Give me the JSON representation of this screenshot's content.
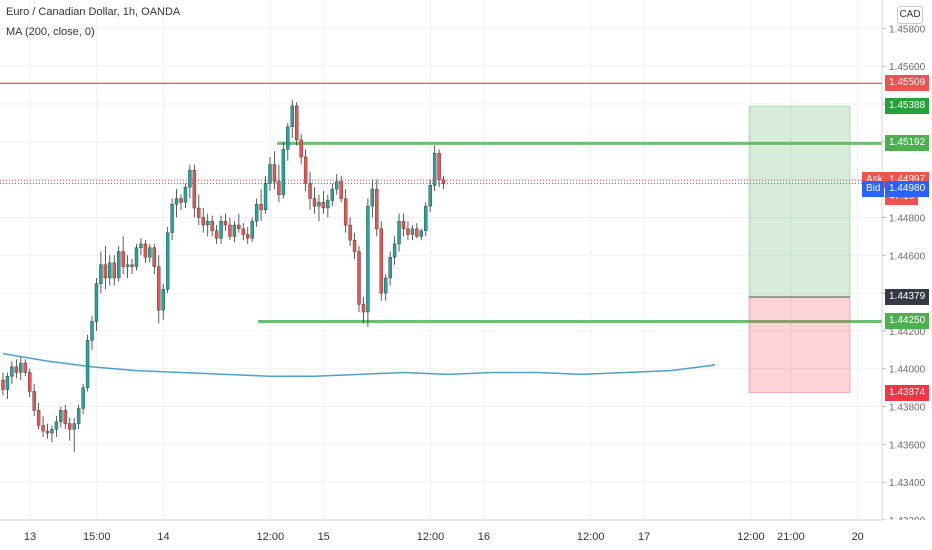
{
  "header": {
    "title": "Euro / Canadian Dollar, 1h, OANDA",
    "indicator": "MA (200, close, 0)",
    "currency": "CAD"
  },
  "price_tags": {
    "resistance": {
      "value": "1.45509",
      "color": "#ef5350"
    },
    "target": {
      "value": "1.45388",
      "color": "#21a33a"
    },
    "range_top": {
      "value": "1.45192",
      "color": "#4caf50"
    },
    "ask": {
      "label": "Ask",
      "value": "1.44997",
      "color": "#ef5350"
    },
    "countdown": {
      "value": "47:10",
      "color": "#ef5350"
    },
    "bid": {
      "label": "Bid",
      "value": "1.44980",
      "color": "#2962ff"
    },
    "entry": {
      "value": "1.44379",
      "color": "#363a45"
    },
    "range_bottom": {
      "value": "1.44250",
      "color": "#4caf50"
    },
    "stop": {
      "value": "1.43874",
      "color": "#f23645"
    }
  },
  "colors": {
    "up": "#26a69a",
    "down": "#ef5350",
    "ma": "#4aa3c7",
    "grid": "#eef0f3"
  },
  "chart_data": {
    "type": "candlestick",
    "ylim": [
      1.432,
      1.4595
    ],
    "y_ticks": [
      "1.45800",
      "1.45600",
      "1.45400",
      "1.45200",
      "1.45000",
      "1.44800",
      "1.44600",
      "1.44400",
      "1.44200",
      "1.44000",
      "1.43800",
      "1.43600",
      "1.43400",
      "1.43200"
    ],
    "x_ticks": [
      {
        "label": "13",
        "x": 0
      },
      {
        "label": "15:00",
        "x": 15
      },
      {
        "label": "14",
        "x": 30
      },
      {
        "label": "12:00",
        "x": 54
      },
      {
        "label": "15",
        "x": 66
      },
      {
        "label": "12:00",
        "x": 90
      },
      {
        "label": "16",
        "x": 102
      },
      {
        "label": "12:00",
        "x": 126
      },
      {
        "label": "17",
        "x": 138
      },
      {
        "label": "12:00",
        "x": 162
      },
      {
        "label": "21:00",
        "x": 171
      },
      {
        "label": "20",
        "x": 186
      }
    ],
    "candles": [
      [
        1.4394,
        1.4398,
        1.4386,
        1.4389
      ],
      [
        1.4389,
        1.4398,
        1.4384,
        1.4396
      ],
      [
        1.4396,
        1.4404,
        1.4392,
        1.4401
      ],
      [
        1.4401,
        1.4405,
        1.4395,
        1.4398
      ],
      [
        1.4398,
        1.4406,
        1.4394,
        1.4403
      ],
      [
        1.4403,
        1.4405,
        1.4396,
        1.4398
      ],
      [
        1.4398,
        1.44,
        1.4385,
        1.4388
      ],
      [
        1.4388,
        1.4392,
        1.4375,
        1.4378
      ],
      [
        1.4378,
        1.4382,
        1.4368,
        1.437
      ],
      [
        1.437,
        1.4375,
        1.4364,
        1.4367
      ],
      [
        1.4367,
        1.4371,
        1.4363,
        1.4366
      ],
      [
        1.4366,
        1.437,
        1.4361,
        1.4368
      ],
      [
        1.4368,
        1.4375,
        1.4364,
        1.4372
      ],
      [
        1.4372,
        1.438,
        1.4369,
        1.4378
      ],
      [
        1.4378,
        1.4381,
        1.4368,
        1.4371
      ],
      [
        1.4371,
        1.4374,
        1.4362,
        1.4368
      ],
      [
        1.4368,
        1.4374,
        1.4356,
        1.4371
      ],
      [
        1.4371,
        1.4381,
        1.4368,
        1.4379
      ],
      [
        1.4379,
        1.4392,
        1.4376,
        1.439
      ],
      [
        1.439,
        1.4418,
        1.4388,
        1.4415
      ],
      [
        1.4415,
        1.4428,
        1.441,
        1.4425
      ],
      [
        1.4425,
        1.4448,
        1.442,
        1.4445
      ],
      [
        1.4445,
        1.4462,
        1.444,
        1.4455
      ],
      [
        1.4455,
        1.4465,
        1.4442,
        1.4448
      ],
      [
        1.4448,
        1.446,
        1.4444,
        1.4456
      ],
      [
        1.4456,
        1.446,
        1.4444,
        1.4448
      ],
      [
        1.4448,
        1.4465,
        1.4446,
        1.4462
      ],
      [
        1.4462,
        1.447,
        1.445,
        1.4454
      ],
      [
        1.4454,
        1.446,
        1.4448,
        1.4455
      ],
      [
        1.4455,
        1.4458,
        1.445,
        1.4454
      ],
      [
        1.4454,
        1.4466,
        1.4452,
        1.4464
      ],
      [
        1.4464,
        1.4469,
        1.446,
        1.4466
      ],
      [
        1.4466,
        1.4468,
        1.4456,
        1.4459
      ],
      [
        1.4459,
        1.4466,
        1.4456,
        1.4464
      ],
      [
        1.4464,
        1.4466,
        1.445,
        1.4454
      ],
      [
        1.4454,
        1.446,
        1.4424,
        1.4431
      ],
      [
        1.4431,
        1.4445,
        1.4426,
        1.4442
      ],
      [
        1.4442,
        1.4475,
        1.444,
        1.4472
      ],
      [
        1.4472,
        1.449,
        1.4468,
        1.4487
      ],
      [
        1.4487,
        1.4495,
        1.448,
        1.449
      ],
      [
        1.449,
        1.4492,
        1.4484,
        1.4488
      ],
      [
        1.4488,
        1.4498,
        1.4485,
        1.4496
      ],
      [
        1.4496,
        1.4508,
        1.449,
        1.4505
      ],
      [
        1.4505,
        1.4508,
        1.448,
        1.4485
      ],
      [
        1.4485,
        1.4492,
        1.4476,
        1.448
      ],
      [
        1.448,
        1.4485,
        1.4472,
        1.4476
      ],
      [
        1.4476,
        1.4482,
        1.447,
        1.4478
      ],
      [
        1.4478,
        1.4481,
        1.447,
        1.4473
      ],
      [
        1.4473,
        1.4476,
        1.4466,
        1.4469
      ],
      [
        1.4469,
        1.4481,
        1.4466,
        1.4478
      ],
      [
        1.4478,
        1.4482,
        1.4473,
        1.4476
      ],
      [
        1.4476,
        1.448,
        1.4468,
        1.447
      ],
      [
        1.447,
        1.4478,
        1.4467,
        1.4476
      ],
      [
        1.4476,
        1.4482,
        1.4472,
        1.4474
      ],
      [
        1.4474,
        1.4477,
        1.4468,
        1.4471
      ],
      [
        1.4471,
        1.4475,
        1.4466,
        1.4469
      ],
      [
        1.4469,
        1.448,
        1.4467,
        1.4478
      ],
      [
        1.4478,
        1.449,
        1.4475,
        1.4487
      ],
      [
        1.4487,
        1.4495,
        1.4478,
        1.4484
      ],
      [
        1.4484,
        1.4502,
        1.4482,
        1.4498
      ],
      [
        1.4498,
        1.4512,
        1.4494,
        1.4508
      ],
      [
        1.4508,
        1.4515,
        1.4495,
        1.4499
      ],
      [
        1.4499,
        1.4508,
        1.4488,
        1.4492
      ],
      [
        1.4492,
        1.452,
        1.449,
        1.4516
      ],
      [
        1.4516,
        1.453,
        1.451,
        1.4528
      ],
      [
        1.4528,
        1.4542,
        1.4522,
        1.4539
      ],
      [
        1.4539,
        1.4541,
        1.4518,
        1.4521
      ],
      [
        1.4521,
        1.4524,
        1.4508,
        1.4512
      ],
      [
        1.4512,
        1.4516,
        1.4494,
        1.4498
      ],
      [
        1.4498,
        1.4504,
        1.4484,
        1.449
      ],
      [
        1.449,
        1.4496,
        1.4482,
        1.4486
      ],
      [
        1.4486,
        1.4492,
        1.4478,
        1.4488
      ],
      [
        1.4488,
        1.4494,
        1.4482,
        1.4485
      ],
      [
        1.4485,
        1.4492,
        1.448,
        1.4489
      ],
      [
        1.4489,
        1.4498,
        1.4486,
        1.4495
      ],
      [
        1.4495,
        1.4503,
        1.4492,
        1.4499
      ],
      [
        1.4499,
        1.4502,
        1.4488,
        1.449
      ],
      [
        1.449,
        1.4495,
        1.4472,
        1.4476
      ],
      [
        1.4476,
        1.448,
        1.4465,
        1.4468
      ],
      [
        1.4468,
        1.4472,
        1.4458,
        1.4462
      ],
      [
        1.4462,
        1.4465,
        1.443,
        1.4434
      ],
      [
        1.4434,
        1.4438,
        1.4424,
        1.443
      ],
      [
        1.443,
        1.449,
        1.4422,
        1.4486
      ],
      [
        1.4486,
        1.45,
        1.448,
        1.4495
      ],
      [
        1.4495,
        1.45,
        1.447,
        1.4474
      ],
      [
        1.4474,
        1.4478,
        1.4436,
        1.444
      ],
      [
        1.444,
        1.445,
        1.4436,
        1.4448
      ],
      [
        1.4448,
        1.4462,
        1.4444,
        1.4459
      ],
      [
        1.4459,
        1.447,
        1.4455,
        1.4466
      ],
      [
        1.4466,
        1.4482,
        1.4462,
        1.4478
      ],
      [
        1.4478,
        1.4482,
        1.447,
        1.4474
      ],
      [
        1.4474,
        1.4478,
        1.4468,
        1.4471
      ],
      [
        1.4471,
        1.4476,
        1.4468,
        1.4474
      ],
      [
        1.4474,
        1.4477,
        1.4469,
        1.447
      ],
      [
        1.447,
        1.4474,
        1.4468,
        1.4473
      ],
      [
        1.4473,
        1.4488,
        1.447,
        1.4486
      ],
      [
        1.4486,
        1.45,
        1.4483,
        1.4497
      ],
      [
        1.4497,
        1.4518,
        1.4494,
        1.4514
      ],
      [
        1.4514,
        1.4516,
        1.4496,
        1.45
      ],
      [
        1.45,
        1.4502,
        1.4495,
        1.4498
      ]
    ],
    "ma_200": [
      [
        0,
        1.4408
      ],
      [
        10,
        1.4404
      ],
      [
        20,
        1.4401
      ],
      [
        30,
        1.4399
      ],
      [
        40,
        1.4398
      ],
      [
        50,
        1.4397
      ],
      [
        60,
        1.4396
      ],
      [
        70,
        1.4396
      ],
      [
        80,
        1.4397
      ],
      [
        90,
        1.4398
      ],
      [
        100,
        1.4397
      ],
      [
        110,
        1.4398
      ],
      [
        120,
        1.4398
      ],
      [
        130,
        1.4397
      ],
      [
        140,
        1.4398
      ],
      [
        150,
        1.4399
      ],
      [
        160,
        1.4402
      ]
    ],
    "levels": {
      "resistance": {
        "price": 1.45509,
        "from": -4,
        "to": 200
      },
      "range_top": {
        "price": 1.45192,
        "from": 61,
        "to": 200
      },
      "range_bottom": {
        "price": 1.4425,
        "from": 56,
        "to": 200
      }
    },
    "position": {
      "entry": 1.44379,
      "target": 1.45388,
      "stop": 1.43874,
      "from": 164,
      "to": 186
    }
  }
}
